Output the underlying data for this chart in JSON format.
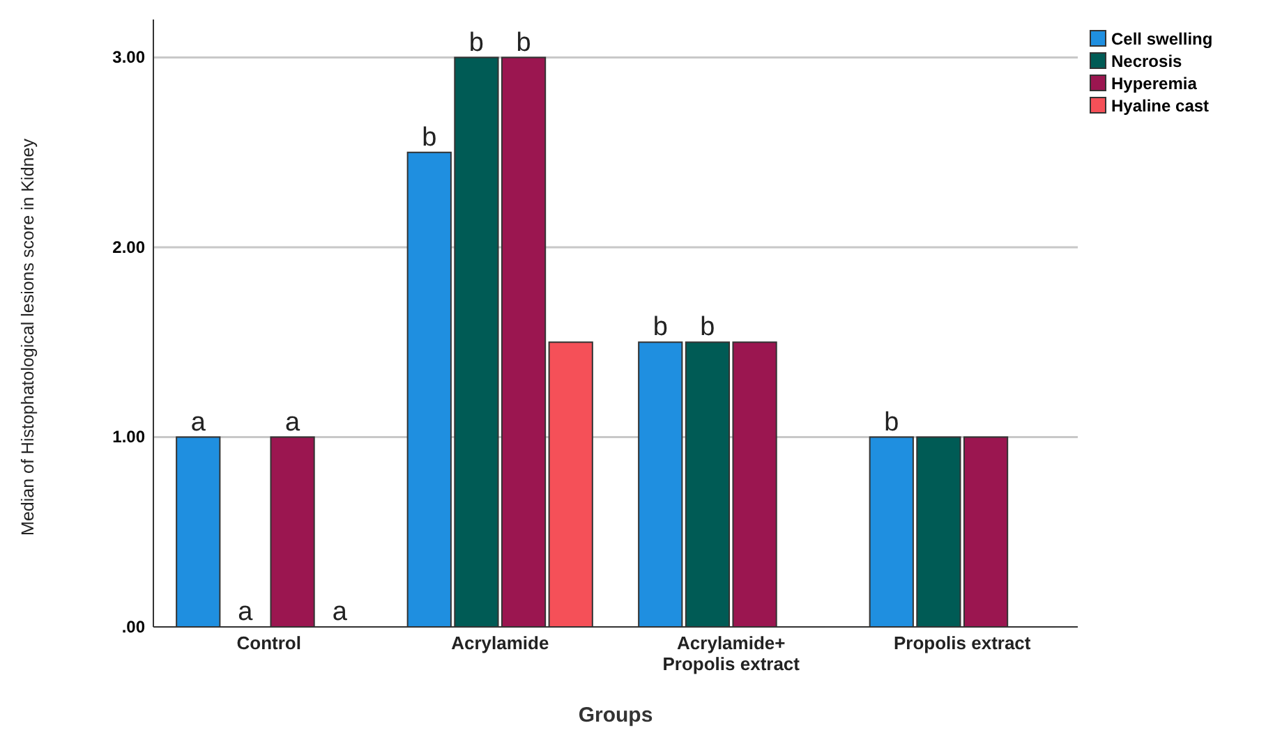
{
  "chart_data": {
    "type": "bar",
    "xlabel": "Groups",
    "ylabel": "Median of Histophatological lesions score in Kidney",
    "categories": [
      "Control",
      "Acrylamide",
      "Acrylamide+\nPropolis extract",
      "Propolis extract"
    ],
    "series": [
      {
        "name": "Cell swelling",
        "color": "#1f8fe0",
        "values": [
          1,
          2.5,
          1.5,
          1
        ],
        "value_labels": [
          "a",
          "b",
          "b",
          "b"
        ]
      },
      {
        "name": "Necrosis",
        "color": "#005b55",
        "values": [
          0,
          3,
          1.5,
          1
        ],
        "value_labels": [
          "a",
          "b",
          "b",
          null
        ]
      },
      {
        "name": "Hyperemia",
        "color": "#9b1650",
        "values": [
          1,
          3,
          1.5,
          1
        ],
        "value_labels": [
          "a",
          "b",
          null,
          null
        ]
      },
      {
        "name": "Hyaline cast",
        "color": "#f55058",
        "values": [
          0,
          1.5,
          0,
          0
        ],
        "value_labels": [
          "a",
          null,
          null,
          null
        ]
      }
    ],
    "ylim": [
      0,
      3.2
    ],
    "yticks": [
      {
        "value": 0,
        "label": ".00"
      },
      {
        "value": 1,
        "label": "1.00"
      },
      {
        "value": 2,
        "label": "2.00"
      },
      {
        "value": 3,
        "label": "3.00"
      }
    ],
    "grid": "y",
    "legend": "top right"
  }
}
